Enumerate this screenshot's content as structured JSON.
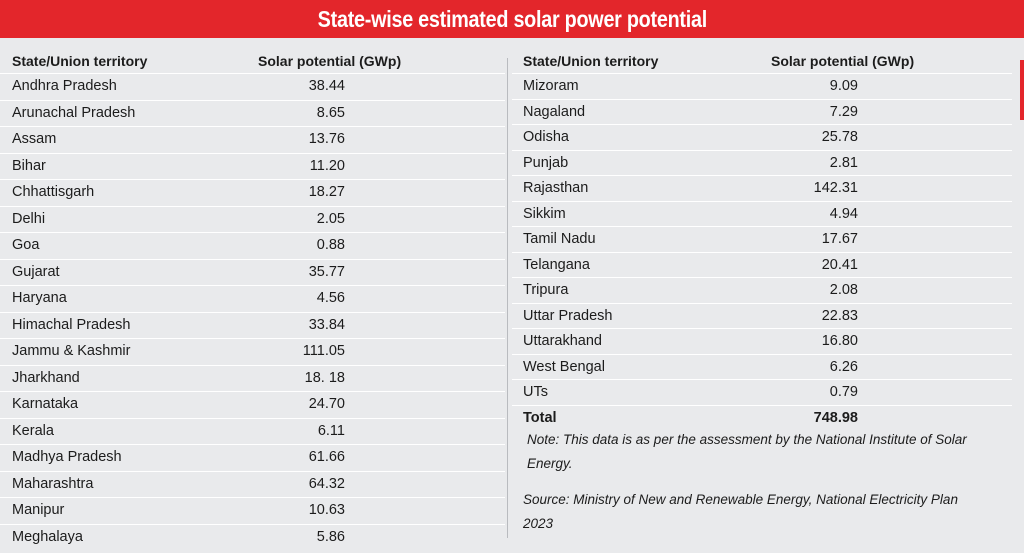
{
  "title": "State-wise estimated solar power potential",
  "columns": {
    "state": "State/Union territory",
    "potential": "Solar potential (GWp)"
  },
  "left_rows": [
    {
      "state": "Andhra Pradesh",
      "value": "38.44"
    },
    {
      "state": "Arunachal Pradesh",
      "value": "8.65"
    },
    {
      "state": "Assam",
      "value": "13.76"
    },
    {
      "state": "Bihar",
      "value": "11.20"
    },
    {
      "state": "Chhattisgarh",
      "value": "18.27"
    },
    {
      "state": "Delhi",
      "value": "2.05"
    },
    {
      "state": "Goa",
      "value": "0.88"
    },
    {
      "state": "Gujarat",
      "value": "35.77"
    },
    {
      "state": "Haryana",
      "value": "4.56"
    },
    {
      "state": "Himachal Pradesh",
      "value": "33.84"
    },
    {
      "state": "Jammu & Kashmir",
      "value": "111.05"
    },
    {
      "state": "Jharkhand",
      "value": "18. 18"
    },
    {
      "state": "Karnataka",
      "value": "24.70"
    },
    {
      "state": "Kerala",
      "value": "6.11"
    },
    {
      "state": "Madhya Pradesh",
      "value": "61.66"
    },
    {
      "state": "Maharashtra",
      "value": "64.32"
    },
    {
      "state": "Manipur",
      "value": "10.63"
    },
    {
      "state": "Meghalaya",
      "value": "5.86"
    }
  ],
  "right_rows": [
    {
      "state": "Mizoram",
      "value": "9.09"
    },
    {
      "state": "Nagaland",
      "value": "7.29"
    },
    {
      "state": "Odisha",
      "value": "25.78"
    },
    {
      "state": "Punjab",
      "value": "2.81"
    },
    {
      "state": "Rajasthan",
      "value": "142.31"
    },
    {
      "state": "Sikkim",
      "value": "4.94"
    },
    {
      "state": "Tamil Nadu",
      "value": "17.67"
    },
    {
      "state": "Telangana",
      "value": "20.41"
    },
    {
      "state": "Tripura",
      "value": "2.08"
    },
    {
      "state": "Uttar Pradesh",
      "value": "22.83"
    },
    {
      "state": "Uttarakhand",
      "value": "16.80"
    },
    {
      "state": "West Bengal",
      "value": "6.26"
    },
    {
      "state": "UTs",
      "value": "0.79"
    }
  ],
  "total": {
    "label": "Total",
    "value": "748.98"
  },
  "note": "Note: This data is as per the assessment by the National Institute of Solar Energy.",
  "source": "Source: Ministry of New and Renewable Energy, National Electricity Plan 2023",
  "colors": {
    "title_bar": "#e3262b",
    "background": "#e9eaec"
  }
}
